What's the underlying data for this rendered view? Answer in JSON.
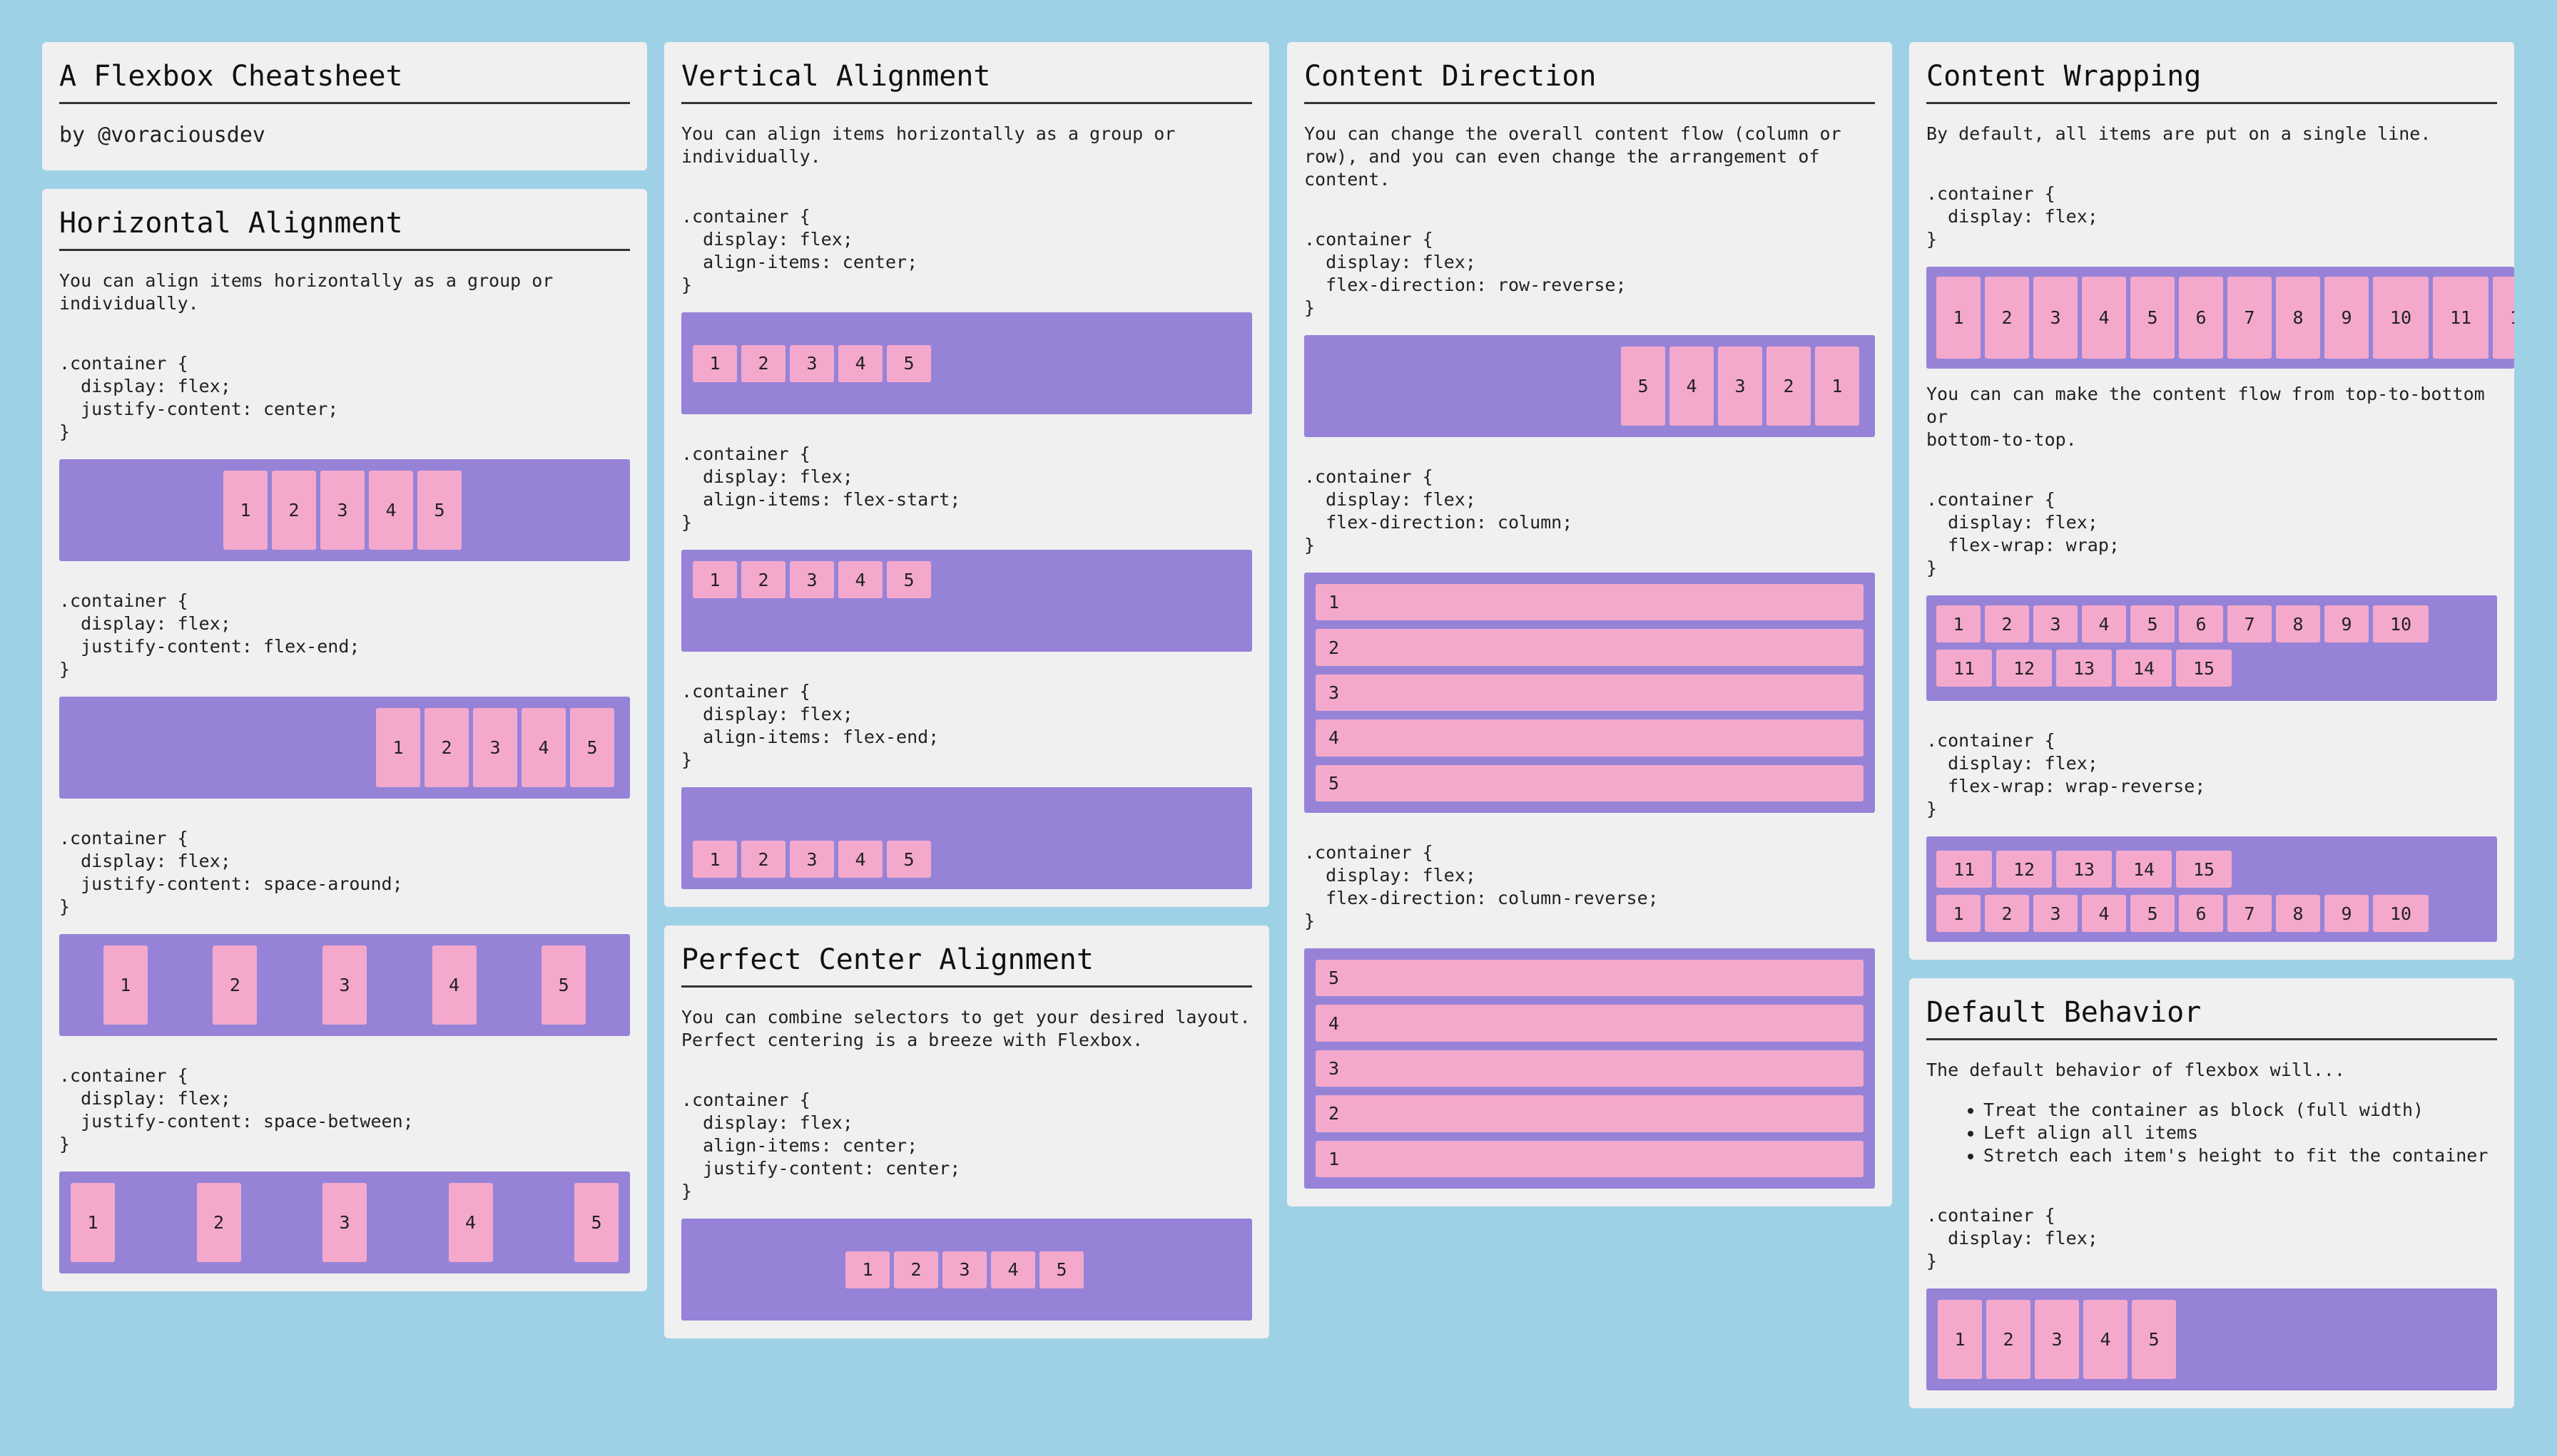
{
  "header": {
    "title": "A Flexbox Cheatsheet",
    "byline": "by @voraciousdev"
  },
  "horizontal": {
    "title": "Horizontal Alignment",
    "desc": "You can align items horizontally as a group or\nindividually.",
    "code1": ".container {\n  display: flex;\n  justify-content: center;\n}",
    "code2": ".container {\n  display: flex;\n  justify-content: flex-end;\n}",
    "code3": ".container {\n  display: flex;\n  justify-content: space-around;\n}",
    "code4": ".container {\n  display: flex;\n  justify-content: space-between;\n}"
  },
  "vertical": {
    "title": "Vertical Alignment",
    "desc": "You can align items horizontally as a group or\nindividually.",
    "code1": ".container {\n  display: flex;\n  align-items: center;\n}",
    "code2": ".container {\n  display: flex;\n  align-items: flex-start;\n}",
    "code3": ".container {\n  display: flex;\n  align-items: flex-end;\n}"
  },
  "perfect": {
    "title": "Perfect Center Alignment",
    "desc": "You can combine selectors to get your desired layout.\nPerfect centering is a breeze with Flexbox.",
    "code1": ".container {\n  display: flex;\n  align-items: center;\n  justify-content: center;\n}"
  },
  "direction": {
    "title": "Content Direction",
    "desc": "You can change the overall content flow (column or\nrow), and you can even change the arrangement of\ncontent.",
    "code1": ".container {\n  display: flex;\n  flex-direction: row-reverse;\n}",
    "code2": ".container {\n  display: flex;\n  flex-direction: column;\n}",
    "code3": ".container {\n  display: flex;\n  flex-direction: column-reverse;\n}"
  },
  "wrapping": {
    "title": "Content Wrapping",
    "desc": "By default, all items are put on a single line.",
    "code1": ".container {\n  display: flex;\n}",
    "desc2": "You can can make the content flow from top-to-bottom or\nbottom-to-top.",
    "code2": ".container {\n  display: flex;\n  flex-wrap: wrap;\n}",
    "code3": ".container {\n  display: flex;\n  flex-wrap: wrap-reverse;\n}"
  },
  "default": {
    "title": "Default Behavior",
    "desc": "The default behavior of flexbox will...",
    "bullets": [
      "Treat the container as block (full width)",
      "Left align all items",
      "Stretch each item's height to fit the container"
    ],
    "code1": ".container {\n  display: flex;\n}"
  },
  "items5": [
    "1",
    "2",
    "3",
    "4",
    "5"
  ],
  "items15": [
    "1",
    "2",
    "3",
    "4",
    "5",
    "6",
    "7",
    "8",
    "9",
    "10",
    "11",
    "12",
    "13",
    "14",
    "15"
  ],
  "colors": {
    "background": "#9fd1e6",
    "card": "#f0f0f0",
    "container": "#9683d8",
    "item": "#f4a9cc"
  }
}
